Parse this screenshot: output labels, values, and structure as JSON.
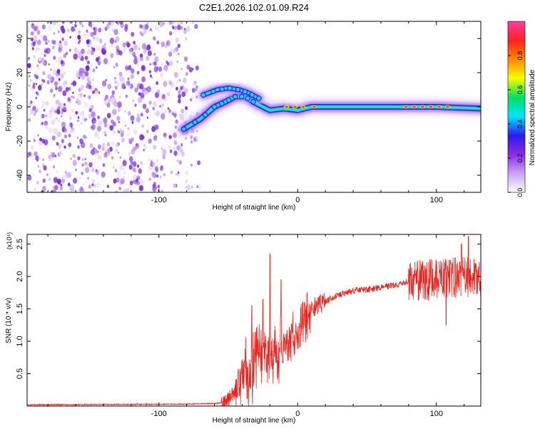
{
  "title": "C2E1.2026.102.01.09.R24",
  "colors": {
    "snr_line": "#e8251f",
    "axis": "#000000",
    "low_noise": "#8a2be2"
  },
  "chart_data": [
    {
      "type": "heatmap",
      "name": "spectrogram",
      "xlabel": "Height of straight line (km)",
      "ylabel": "Frequency (Hz)",
      "xlim": [
        -195,
        132
      ],
      "ylim": [
        -50,
        50
      ],
      "x_ticks": [
        -100,
        0,
        100
      ],
      "x_tick_labels": [
        "-100",
        "0",
        "100"
      ],
      "y_ticks": [
        -40,
        -20,
        0,
        20,
        40
      ],
      "y_tick_labels": [
        "-40",
        "-20",
        "0",
        "20",
        "40"
      ],
      "noise_region_x": [
        -195,
        -70
      ],
      "signal_track": [
        {
          "x": -82,
          "y": -13
        },
        {
          "x": -70,
          "y": -7
        },
        {
          "x": -60,
          "y": 0
        },
        {
          "x": -52,
          "y": 3
        },
        {
          "x": -45,
          "y": 6
        },
        {
          "x": -38,
          "y": 6
        },
        {
          "x": -32,
          "y": 3
        },
        {
          "x": -25,
          "y": 0
        },
        {
          "x": -20,
          "y": -2
        },
        {
          "x": -10,
          "y": -1
        },
        {
          "x": 0,
          "y": -2
        },
        {
          "x": 10,
          "y": 0
        },
        {
          "x": 40,
          "y": 0
        },
        {
          "x": 70,
          "y": 0
        },
        {
          "x": 100,
          "y": 0
        },
        {
          "x": 132,
          "y": -1
        }
      ],
      "upper_branch": [
        {
          "x": -68,
          "y": 7
        },
        {
          "x": -58,
          "y": 10
        },
        {
          "x": -50,
          "y": 11
        },
        {
          "x": -42,
          "y": 10
        },
        {
          "x": -35,
          "y": 8
        },
        {
          "x": -28,
          "y": 5
        }
      ],
      "colorbar": {
        "label": "Normalized spectral amplitude",
        "range": [
          0,
          1
        ],
        "ticks": [
          0.0,
          0.2,
          0.4,
          0.6,
          0.8
        ],
        "tick_labels": [
          "0.0",
          "0.2",
          "0.4",
          "0.6",
          "0.8"
        ],
        "gradient": [
          "#ffffff",
          "#c9a3f5",
          "#8a2be2",
          "#2a1cf0",
          "#00e5ff",
          "#00e060",
          "#f5ff00",
          "#ff8a00",
          "#ff2020",
          "#ff40a0"
        ]
      }
    },
    {
      "type": "line",
      "name": "snr",
      "xlabel": "Height of straight line (km)",
      "ylabel": "SNR (10 * v/v)",
      "y_scale_label": "(x10⁴)",
      "xlim": [
        -195,
        132
      ],
      "ylim": [
        0,
        2.65
      ],
      "x_ticks": [
        -100,
        0,
        100
      ],
      "x_tick_labels": [
        "-100",
        "0",
        "100"
      ],
      "y_ticks": [
        0.5,
        1.0,
        1.5,
        2.0,
        2.5
      ],
      "y_tick_labels": [
        "0.5",
        "1.0",
        "1.5",
        "2.0",
        "2.5"
      ],
      "trend": [
        [
          -195,
          0.02
        ],
        [
          -80,
          0.03
        ],
        [
          -60,
          0.04
        ],
        [
          -52,
          0.06
        ],
        [
          -46,
          0.2
        ],
        [
          -40,
          0.45
        ],
        [
          -35,
          0.55
        ],
        [
          -30,
          0.65
        ],
        [
          -25,
          0.75
        ],
        [
          -20,
          0.8
        ],
        [
          -15,
          0.85
        ],
        [
          -10,
          0.95
        ],
        [
          -5,
          1.05
        ],
        [
          0,
          1.15
        ],
        [
          5,
          1.35
        ],
        [
          10,
          1.5
        ],
        [
          20,
          1.62
        ],
        [
          30,
          1.72
        ],
        [
          40,
          1.78
        ],
        [
          50,
          1.8
        ],
        [
          60,
          1.83
        ],
        [
          70,
          1.87
        ],
        [
          80,
          1.92
        ],
        [
          90,
          1.94
        ],
        [
          100,
          1.96
        ],
        [
          110,
          1.98
        ],
        [
          120,
          2.0
        ],
        [
          132,
          2.0
        ]
      ],
      "peaks": [
        [
          -20,
          2.35
        ],
        [
          -12,
          1.95
        ],
        [
          -33,
          1.55
        ],
        [
          -25,
          1.65
        ],
        [
          5,
          1.6
        ],
        [
          110,
          2.25
        ],
        [
          118,
          2.5
        ],
        [
          123,
          2.62
        ],
        [
          128,
          2.2
        ],
        [
          107,
          1.25
        ]
      ]
    }
  ]
}
